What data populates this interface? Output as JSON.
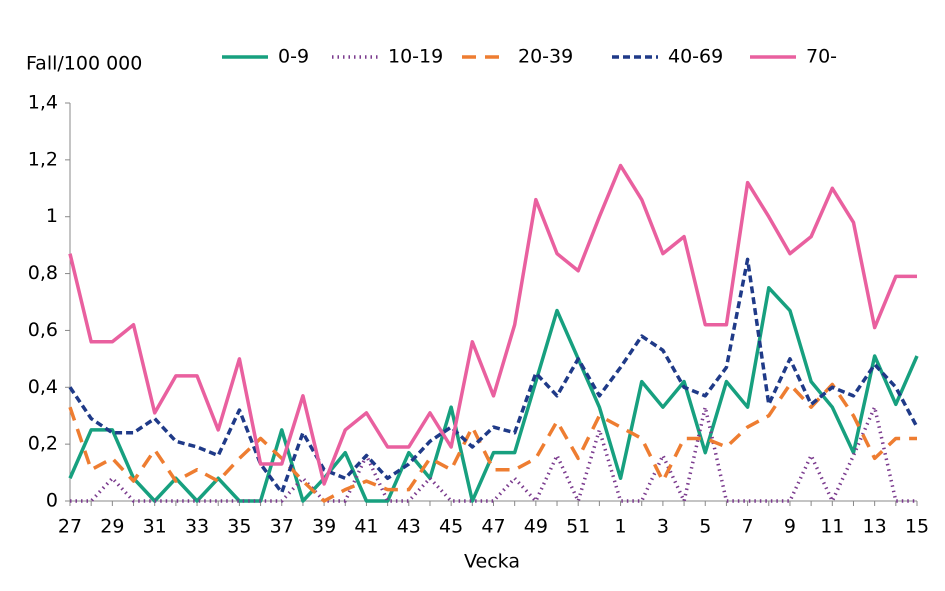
{
  "chart_data": {
    "type": "line",
    "y_axis_label": "Fall/100 000",
    "x_axis_label": "Vecka",
    "categories": [
      "27",
      null,
      "29",
      null,
      "31",
      null,
      "33",
      null,
      "35",
      null,
      "37",
      null,
      "39",
      null,
      "41",
      null,
      "43",
      null,
      "45",
      null,
      "47",
      null,
      "49",
      null,
      "51",
      null,
      "1",
      null,
      "3",
      null,
      "5",
      null,
      "7",
      null,
      "9",
      null,
      "11",
      null,
      "13",
      null,
      "15"
    ],
    "ylim": [
      0,
      1.4
    ],
    "yticks": [
      0,
      {
        "value": 0.2,
        "label": "0,2"
      },
      {
        "value": 0.4,
        "label": "0,4"
      },
      {
        "value": 0.6,
        "label": "0,6"
      },
      {
        "value": 0.8,
        "label": "0,8"
      },
      1,
      {
        "value": 1.2,
        "label": "1,2"
      },
      {
        "value": 1.4,
        "label": "1,4"
      }
    ],
    "legend": "top",
    "series": [
      {
        "name": "0-9",
        "color": "#17a07f",
        "dash": "solid",
        "values": [
          0.08,
          0.25,
          0.25,
          0.08,
          0,
          0.08,
          0,
          0.08,
          0,
          0,
          0.25,
          0,
          0.08,
          0.17,
          0,
          0,
          0.17,
          0.08,
          0.33,
          0,
          0.17,
          0.17,
          0.42,
          0.67,
          0.5,
          0.33,
          0.08,
          0.42,
          0.33,
          0.42,
          0.17,
          0.42,
          0.33,
          0.75,
          0.67,
          0.42,
          0.33,
          0.17,
          0.51,
          0.34,
          0.51
        ]
      },
      {
        "name": "10-19",
        "color": "#7b3b8e",
        "dash": "dotted",
        "values": [
          0,
          0,
          0.08,
          0,
          0,
          0,
          0,
          0,
          0,
          0,
          0,
          0.08,
          0,
          0,
          0.16,
          0,
          0,
          0.08,
          0,
          0,
          0,
          0.08,
          0,
          0.16,
          0,
          0.25,
          0,
          0,
          0.16,
          0,
          0.33,
          0,
          0,
          0,
          0,
          0.16,
          0,
          0.16,
          0.33,
          0,
          0
        ]
      },
      {
        "name": "20-39",
        "color": "#ee7d31",
        "dash": "dashed",
        "values": [
          0.33,
          0.11,
          0.15,
          0.07,
          0.18,
          0.07,
          0.11,
          0.07,
          0.15,
          0.22,
          0.15,
          0.07,
          0,
          0.04,
          0.07,
          0.04,
          0.04,
          0.15,
          0.11,
          0.26,
          0.11,
          0.11,
          0.15,
          0.28,
          0.15,
          0.3,
          0.26,
          0.22,
          0.07,
          0.22,
          0.22,
          0.19,
          0.26,
          0.3,
          0.41,
          0.33,
          0.41,
          0.3,
          0.15,
          0.22,
          0.22
        ]
      },
      {
        "name": "40-69",
        "color": "#1f3a88",
        "dash": "short-dashed",
        "values": [
          0.4,
          0.29,
          0.24,
          0.24,
          0.29,
          0.21,
          0.19,
          0.16,
          0.32,
          0.13,
          0.03,
          0.24,
          0.11,
          0.08,
          0.16,
          0.08,
          0.13,
          0.21,
          0.26,
          0.19,
          0.26,
          0.24,
          0.45,
          0.37,
          0.5,
          0.37,
          0.47,
          0.58,
          0.53,
          0.4,
          0.37,
          0.47,
          0.85,
          0.34,
          0.5,
          0.34,
          0.4,
          0.37,
          0.48,
          0.4,
          0.26
        ]
      },
      {
        "name": "70-",
        "color": "#e9609f",
        "dash": "solid",
        "values": [
          0.87,
          0.56,
          0.56,
          0.62,
          0.31,
          0.44,
          0.44,
          0.25,
          0.5,
          0.13,
          0.13,
          0.37,
          0.06,
          0.25,
          0.31,
          0.19,
          0.19,
          0.31,
          0.19,
          0.56,
          0.37,
          0.62,
          1.06,
          0.87,
          0.81,
          1.0,
          1.18,
          1.06,
          0.87,
          0.93,
          0.62,
          0.62,
          1.12,
          1.0,
          0.87,
          0.93,
          1.1,
          0.98,
          0.61,
          0.79,
          0.79
        ]
      }
    ]
  }
}
